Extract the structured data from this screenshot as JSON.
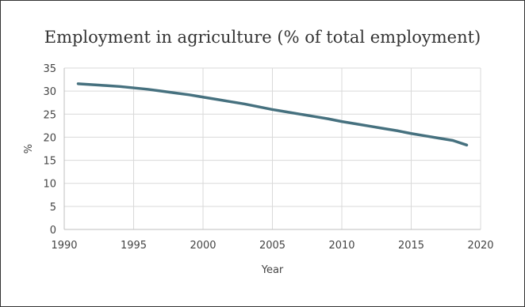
{
  "chart_data": {
    "type": "line",
    "title": "Employment in agriculture (% of total employment)",
    "xlabel": "Year",
    "ylabel": "%",
    "xlim": [
      1990,
      2020
    ],
    "ylim": [
      0,
      35
    ],
    "x_ticks": [
      "1990",
      "1995",
      "2000",
      "2005",
      "2010",
      "2015",
      "2020"
    ],
    "y_ticks": [
      "0",
      "5",
      "10",
      "15",
      "20",
      "25",
      "30",
      "35"
    ],
    "grid": true,
    "legend": "none",
    "colors": {
      "line": "#46717f",
      "grid": "#d9d9d9",
      "axis": "#bfbfbf"
    },
    "series": [
      {
        "x": [
          1991,
          1992,
          1993,
          1994,
          1995,
          1996,
          1997,
          1998,
          1999,
          2000,
          2001,
          2002,
          2003,
          2004,
          2005,
          2006,
          2007,
          2008,
          2009,
          2010,
          2011,
          2012,
          2013,
          2014,
          2015,
          2016,
          2017,
          2018,
          2019
        ],
        "values": [
          31.6,
          31.4,
          31.2,
          31.0,
          30.7,
          30.4,
          30.0,
          29.6,
          29.2,
          28.7,
          28.2,
          27.7,
          27.2,
          26.6,
          26.0,
          25.5,
          25.0,
          24.5,
          24.0,
          23.4,
          22.9,
          22.4,
          21.9,
          21.4,
          20.8,
          20.3,
          19.8,
          19.3,
          18.3
        ]
      }
    ]
  }
}
